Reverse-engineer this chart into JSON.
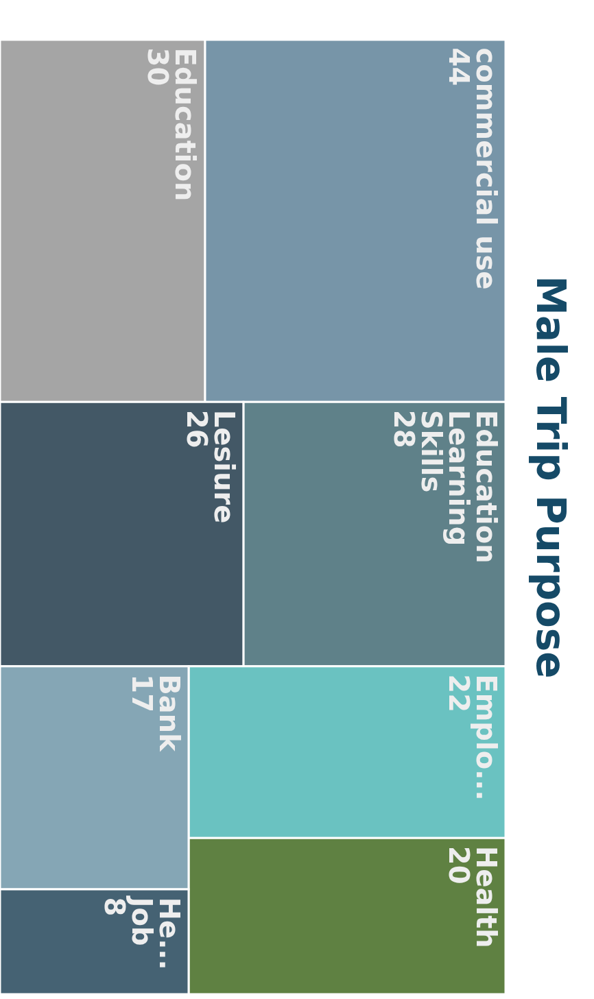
{
  "chart_data": {
    "type": "other",
    "title": "Male Trip Purpose",
    "categories": [
      "commercial use",
      "Education",
      "Education\nLearning\nSkills",
      "Lesiure",
      "Emplo...",
      "Health",
      "Bank",
      "He...\nJob"
    ],
    "values": [
      44,
      30,
      28,
      26,
      22,
      20,
      17,
      8
    ],
    "colors": [
      "#7795a8",
      "#a5a5a5",
      "#5f8189",
      "#435866",
      "#6ac2c1",
      "#5f8142",
      "#85a6b5",
      "#456273"
    ],
    "data_labels": true
  }
}
